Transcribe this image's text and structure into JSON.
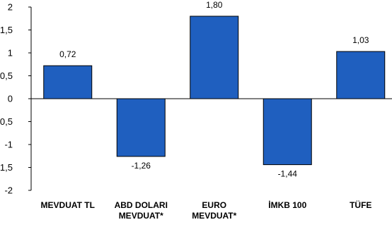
{
  "chart_data": {
    "type": "bar",
    "categories": [
      [
        "MEVDUAT TL"
      ],
      [
        "ABD DOLARI",
        "MEVDUAT*"
      ],
      [
        "EURO",
        "MEVDUAT*"
      ],
      [
        "İMKB 100"
      ],
      [
        "TÜFE"
      ]
    ],
    "values": [
      0.72,
      -1.26,
      1.8,
      -1.44,
      1.03
    ],
    "value_labels": [
      "0,72",
      "-1,26",
      "1,80",
      "-1,44",
      "1,03"
    ],
    "yticks": [
      2,
      1.5,
      1,
      0.5,
      0,
      -0.5,
      -1,
      -1.5,
      -2
    ],
    "ytick_labels": [
      "2",
      "1,5",
      "1",
      "0,5",
      "0",
      "-0,5",
      "-1",
      "-1,5",
      "-2"
    ],
    "ylim": [
      -2,
      2
    ],
    "grid": false,
    "legend": "none",
    "title": "",
    "xlabel": "",
    "ylabel": "",
    "colors": {
      "bar_fill": "#1f5fbf",
      "bar_stroke": "#000000",
      "axis": "#000000"
    }
  }
}
